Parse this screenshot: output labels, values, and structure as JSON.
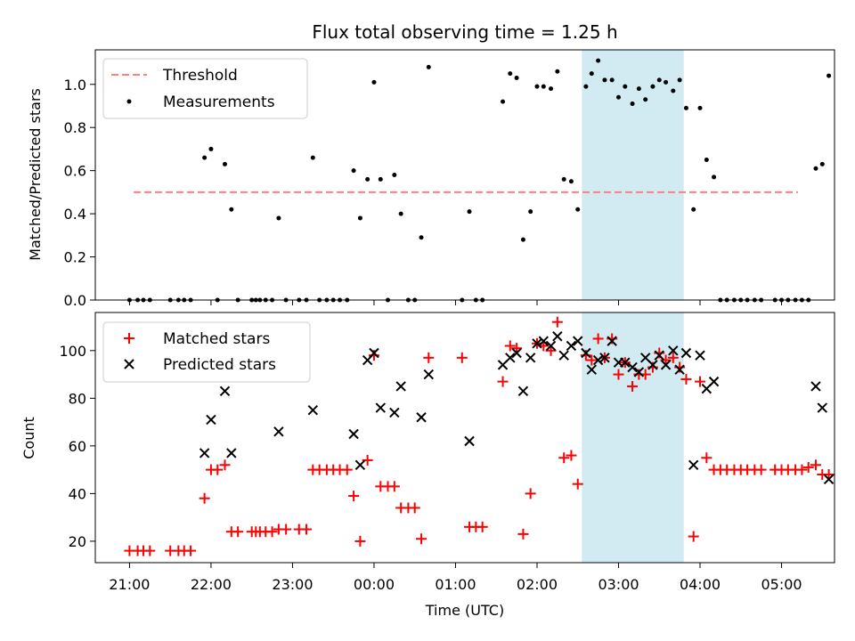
{
  "chart_data": [
    {
      "type": "scatter",
      "title": "Flux total observing time = 1.25 h",
      "xlabel": "",
      "ylabel": "Matched/Predicted stars",
      "xlim": [
        -0.42,
        8.65
      ],
      "ylim": [
        0,
        1.16
      ],
      "yticks": [
        0.0,
        0.2,
        0.4,
        0.6,
        0.8,
        1.0
      ],
      "ytick_labels": [
        "0.0",
        "0.2",
        "0.4",
        "0.6",
        "0.8",
        "1.0"
      ],
      "xticks": [
        0,
        1,
        2,
        3,
        4,
        5,
        6,
        7,
        8
      ],
      "highlight_span": [
        5.55,
        6.8
      ],
      "highlight_color": "#add8e6",
      "legend_position": "upper-left",
      "threshold": {
        "name": "Threshold",
        "y": 0.5,
        "x": [
          0.05,
          8.2
        ],
        "color": "#ff7f7f",
        "style": "dashed"
      },
      "series": [
        {
          "name": "Measurements",
          "color": "#000000",
          "marker": "dot",
          "points": [
            [
              0.0,
              0
            ],
            [
              0.1,
              0
            ],
            [
              0.17,
              0
            ],
            [
              0.25,
              0
            ],
            [
              0.5,
              0
            ],
            [
              0.6,
              0
            ],
            [
              0.67,
              0
            ],
            [
              0.75,
              0
            ],
            [
              0.92,
              0.66
            ],
            [
              1.0,
              0.7
            ],
            [
              1.08,
              0
            ],
            [
              1.17,
              0.63
            ],
            [
              1.25,
              0.42
            ],
            [
              1.33,
              0
            ],
            [
              1.5,
              0
            ],
            [
              1.55,
              0
            ],
            [
              1.6,
              0
            ],
            [
              1.67,
              0
            ],
            [
              1.75,
              0
            ],
            [
              1.83,
              0.38
            ],
            [
              1.92,
              0
            ],
            [
              2.08,
              0
            ],
            [
              2.17,
              0
            ],
            [
              2.25,
              0.66
            ],
            [
              2.33,
              0
            ],
            [
              2.42,
              0
            ],
            [
              2.5,
              0
            ],
            [
              2.58,
              0
            ],
            [
              2.67,
              0
            ],
            [
              2.75,
              0.6
            ],
            [
              2.83,
              0.38
            ],
            [
              2.92,
              0.56
            ],
            [
              3.0,
              1.01
            ],
            [
              3.08,
              0.56
            ],
            [
              3.17,
              0
            ],
            [
              3.25,
              0.58
            ],
            [
              3.33,
              0.4
            ],
            [
              3.42,
              0
            ],
            [
              3.5,
              0
            ],
            [
              3.58,
              0.29
            ],
            [
              3.67,
              1.08
            ],
            [
              4.08,
              0
            ],
            [
              4.17,
              0.41
            ],
            [
              4.25,
              0
            ],
            [
              4.33,
              0
            ],
            [
              4.58,
              0.92
            ],
            [
              4.67,
              1.05
            ],
            [
              4.75,
              1.03
            ],
            [
              4.83,
              0.28
            ],
            [
              4.92,
              0.41
            ],
            [
              5.0,
              0.99
            ],
            [
              5.08,
              0.99
            ],
            [
              5.17,
              0.98
            ],
            [
              5.25,
              1.06
            ],
            [
              5.33,
              0.56
            ],
            [
              5.42,
              0.55
            ],
            [
              5.5,
              0.42
            ],
            [
              5.6,
              0.99
            ],
            [
              5.67,
              1.05
            ],
            [
              5.75,
              1.11
            ],
            [
              5.83,
              1.02
            ],
            [
              5.92,
              1.02
            ],
            [
              6.0,
              0.94
            ],
            [
              6.08,
              0.99
            ],
            [
              6.17,
              0.91
            ],
            [
              6.25,
              0.98
            ],
            [
              6.33,
              0.93
            ],
            [
              6.42,
              0.99
            ],
            [
              6.5,
              1.02
            ],
            [
              6.58,
              1.01
            ],
            [
              6.67,
              0.97
            ],
            [
              6.75,
              1.02
            ],
            [
              6.83,
              0.89
            ],
            [
              6.92,
              0.42
            ],
            [
              7.0,
              0.89
            ],
            [
              7.08,
              0.65
            ],
            [
              7.17,
              0.57
            ],
            [
              7.25,
              0
            ],
            [
              7.33,
              0
            ],
            [
              7.42,
              0
            ],
            [
              7.5,
              0
            ],
            [
              7.58,
              0
            ],
            [
              7.67,
              0
            ],
            [
              7.75,
              0
            ],
            [
              7.92,
              0
            ],
            [
              8.0,
              0
            ],
            [
              8.08,
              0
            ],
            [
              8.17,
              0
            ],
            [
              8.25,
              0
            ],
            [
              8.33,
              0
            ],
            [
              8.42,
              0.61
            ],
            [
              8.5,
              0.63
            ],
            [
              8.58,
              1.04
            ]
          ]
        }
      ]
    },
    {
      "type": "scatter",
      "title": "",
      "xlabel": "Time (UTC)",
      "ylabel": "Count",
      "xlim": [
        -0.42,
        8.65
      ],
      "ylim": [
        11,
        116
      ],
      "yticks": [
        20,
        40,
        60,
        80,
        100
      ],
      "ytick_labels": [
        "20",
        "40",
        "60",
        "80",
        "100"
      ],
      "xticks": [
        0,
        1,
        2,
        3,
        4,
        5,
        6,
        7,
        8
      ],
      "xtick_labels": [
        "21:00",
        "22:00",
        "23:00",
        "00:00",
        "01:00",
        "02:00",
        "03:00",
        "04:00",
        "05:00"
      ],
      "highlight_span": [
        5.55,
        6.8
      ],
      "highlight_color": "#add8e6",
      "legend_position": "upper-left",
      "series": [
        {
          "name": "Matched stars",
          "color": "#ff0000",
          "marker": "plus",
          "points": [
            [
              0.0,
              16
            ],
            [
              0.1,
              16
            ],
            [
              0.17,
              16
            ],
            [
              0.25,
              16
            ],
            [
              0.5,
              16
            ],
            [
              0.6,
              16
            ],
            [
              0.67,
              16
            ],
            [
              0.75,
              16
            ],
            [
              0.92,
              38
            ],
            [
              1.0,
              50
            ],
            [
              1.08,
              50
            ],
            [
              1.17,
              52
            ],
            [
              1.25,
              24
            ],
            [
              1.33,
              24
            ],
            [
              1.5,
              24
            ],
            [
              1.55,
              24
            ],
            [
              1.6,
              24
            ],
            [
              1.67,
              24
            ],
            [
              1.75,
              24
            ],
            [
              1.83,
              25
            ],
            [
              1.92,
              25
            ],
            [
              2.08,
              25
            ],
            [
              2.17,
              25
            ],
            [
              2.25,
              50
            ],
            [
              2.33,
              50
            ],
            [
              2.42,
              50
            ],
            [
              2.5,
              50
            ],
            [
              2.58,
              50
            ],
            [
              2.67,
              50
            ],
            [
              2.75,
              39
            ],
            [
              2.83,
              20
            ],
            [
              2.92,
              54
            ],
            [
              3.0,
              98
            ],
            [
              3.08,
              43
            ],
            [
              3.17,
              43
            ],
            [
              3.25,
              43
            ],
            [
              3.33,
              34
            ],
            [
              3.42,
              34
            ],
            [
              3.5,
              34
            ],
            [
              3.58,
              21
            ],
            [
              3.67,
              97
            ],
            [
              4.08,
              97
            ],
            [
              4.17,
              26
            ],
            [
              4.25,
              26
            ],
            [
              4.33,
              26
            ],
            [
              4.58,
              87
            ],
            [
              4.67,
              102
            ],
            [
              4.75,
              101
            ],
            [
              4.83,
              23
            ],
            [
              4.92,
              40
            ],
            [
              5.0,
              103
            ],
            [
              5.08,
              102
            ],
            [
              5.17,
              100
            ],
            [
              5.25,
              112
            ],
            [
              5.33,
              55
            ],
            [
              5.42,
              56
            ],
            [
              5.5,
              44
            ],
            [
              5.6,
              98
            ],
            [
              5.67,
              96
            ],
            [
              5.75,
              105
            ],
            [
              5.83,
              97
            ],
            [
              5.92,
              105
            ],
            [
              6.0,
              90
            ],
            [
              6.08,
              95
            ],
            [
              6.17,
              85
            ],
            [
              6.25,
              90
            ],
            [
              6.33,
              90
            ],
            [
              6.42,
              93
            ],
            [
              6.5,
              99
            ],
            [
              6.58,
              96
            ],
            [
              6.67,
              97
            ],
            [
              6.75,
              93
            ],
            [
              6.83,
              88
            ],
            [
              6.92,
              22
            ],
            [
              7.0,
              87
            ],
            [
              7.08,
              55
            ],
            [
              7.17,
              50
            ],
            [
              7.25,
              50
            ],
            [
              7.33,
              50
            ],
            [
              7.42,
              50
            ],
            [
              7.5,
              50
            ],
            [
              7.58,
              50
            ],
            [
              7.67,
              50
            ],
            [
              7.75,
              50
            ],
            [
              7.92,
              50
            ],
            [
              8.0,
              50
            ],
            [
              8.08,
              50
            ],
            [
              8.17,
              50
            ],
            [
              8.25,
              50
            ],
            [
              8.33,
              51
            ],
            [
              8.42,
              52
            ],
            [
              8.5,
              48
            ],
            [
              8.58,
              48
            ]
          ]
        },
        {
          "name": "Predicted stars",
          "color": "#000000",
          "marker": "x",
          "points": [
            [
              0.92,
              57
            ],
            [
              1.0,
              71
            ],
            [
              1.17,
              83
            ],
            [
              1.25,
              57
            ],
            [
              1.83,
              66
            ],
            [
              2.25,
              75
            ],
            [
              2.75,
              65
            ],
            [
              2.83,
              52
            ],
            [
              2.92,
              96
            ],
            [
              3.0,
              99
            ],
            [
              3.08,
              76
            ],
            [
              3.25,
              74
            ],
            [
              3.33,
              85
            ],
            [
              3.58,
              72
            ],
            [
              3.67,
              90
            ],
            [
              4.17,
              62
            ],
            [
              4.58,
              94
            ],
            [
              4.67,
              97
            ],
            [
              4.75,
              99
            ],
            [
              4.83,
              83
            ],
            [
              4.92,
              97
            ],
            [
              5.0,
              103
            ],
            [
              5.08,
              104
            ],
            [
              5.17,
              102
            ],
            [
              5.25,
              106
            ],
            [
              5.33,
              98
            ],
            [
              5.42,
              102
            ],
            [
              5.5,
              104
            ],
            [
              5.6,
              99
            ],
            [
              5.67,
              92
            ],
            [
              5.75,
              96
            ],
            [
              5.83,
              97
            ],
            [
              5.92,
              104
            ],
            [
              6.0,
              95
            ],
            [
              6.08,
              95
            ],
            [
              6.17,
              93
            ],
            [
              6.25,
              91
            ],
            [
              6.33,
              97
            ],
            [
              6.42,
              94
            ],
            [
              6.5,
              98
            ],
            [
              6.58,
              94
            ],
            [
              6.67,
              100
            ],
            [
              6.75,
              92
            ],
            [
              6.83,
              99
            ],
            [
              6.92,
              52
            ],
            [
              7.0,
              98
            ],
            [
              7.08,
              84
            ],
            [
              7.17,
              87
            ],
            [
              8.42,
              85
            ],
            [
              8.5,
              76
            ],
            [
              8.58,
              46
            ]
          ]
        }
      ]
    }
  ]
}
